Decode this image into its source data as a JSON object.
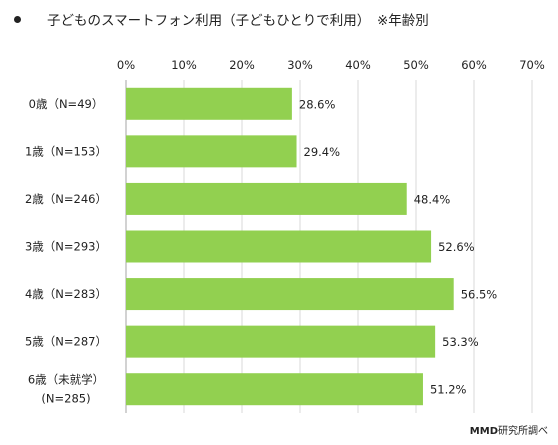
{
  "header": {
    "title": "子どものスマートフォン利用（子どもひとりで利用）　※年齢別"
  },
  "credit": {
    "org": "MMD",
    "suffix": "研究所調べ"
  },
  "colors": {
    "bar": "#92D050",
    "grid": "#D9D9D9",
    "axis": "#A6A6A6"
  },
  "chart_data": {
    "type": "bar",
    "orientation": "horizontal",
    "title": "子どものスマートフォン利用（子どもひとりで利用）　※年齢別",
    "categories": [
      [
        "0歳（N=49）"
      ],
      [
        "1歳（N=153）"
      ],
      [
        "2歳（N=246）"
      ],
      [
        "3歳（N=293）"
      ],
      [
        "4歳（N=283）"
      ],
      [
        "5歳（N=287）"
      ],
      [
        "6歳（未就学）",
        "(N=285)"
      ]
    ],
    "values": [
      28.6,
      29.4,
      48.4,
      52.6,
      56.5,
      53.3,
      51.2
    ],
    "value_labels": [
      "28.6%",
      "29.4%",
      "48.4%",
      "52.6%",
      "56.5%",
      "53.3%",
      "51.2%"
    ],
    "xlim": [
      0,
      70
    ],
    "xticks": [
      0,
      10,
      20,
      30,
      40,
      50,
      60,
      70
    ],
    "xtick_labels": [
      "0%",
      "10%",
      "20%",
      "30%",
      "40%",
      "50%",
      "60%",
      "70%"
    ],
    "xaxis_position": "top",
    "grid": true,
    "legend": false
  }
}
